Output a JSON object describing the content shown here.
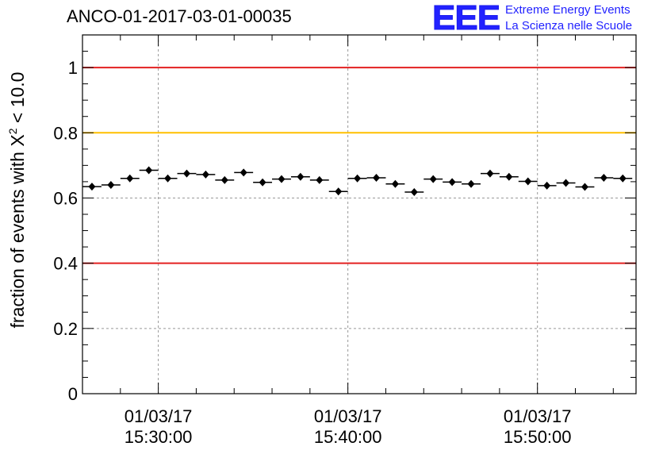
{
  "header": {
    "title": "ANCO-01-2017-03-01-00035"
  },
  "logo": {
    "mark": "EEE",
    "line1": "Extreme Energy Events",
    "line2": "La Scienza nelle Scuole",
    "color": "#2222ff"
  },
  "chart_data": {
    "type": "scatter",
    "title": "ANCO-01-2017-03-01-00035",
    "ylabel_prefix": "fraction of events with X",
    "ylabel_sup": "2",
    "ylabel_suffix": " < 10.0",
    "xlabel": "",
    "ylim": [
      0,
      1.1
    ],
    "yticks": [
      {
        "value": 0,
        "label": "0"
      },
      {
        "value": 0.2,
        "label": "0.2"
      },
      {
        "value": 0.4,
        "label": "0.4"
      },
      {
        "value": 0.6,
        "label": "0.6"
      },
      {
        "value": 0.8,
        "label": "0.8"
      },
      {
        "value": 1,
        "label": "1"
      }
    ],
    "xlim_minutes": [
      -4,
      25.2
    ],
    "xticks": [
      {
        "minutes": 0,
        "date": "01/03/17",
        "time": "15:30:00"
      },
      {
        "minutes": 10,
        "date": "01/03/17",
        "time": "15:40:00"
      },
      {
        "minutes": 20,
        "date": "01/03/17",
        "time": "15:50:00"
      }
    ],
    "grid": true,
    "bin_width_minutes": 1,
    "series": [
      {
        "x_minutes": [
          -3.5,
          -2.5,
          -1.5,
          -0.5,
          0.5,
          1.5,
          2.5,
          3.5,
          4.5,
          5.5,
          6.5,
          7.5,
          8.5,
          9.5,
          10.5,
          11.5,
          12.5,
          13.5,
          14.5,
          15.5,
          16.5,
          17.5,
          18.5,
          19.5,
          20.5,
          21.5,
          22.5,
          23.5,
          24.5
        ],
        "values": [
          0.635,
          0.64,
          0.66,
          0.685,
          0.66,
          0.675,
          0.672,
          0.655,
          0.678,
          0.648,
          0.658,
          0.665,
          0.655,
          0.62,
          0.66,
          0.662,
          0.643,
          0.618,
          0.658,
          0.649,
          0.643,
          0.675,
          0.665,
          0.651,
          0.638,
          0.646,
          0.634,
          0.662,
          0.66
        ],
        "errors": [
          0.008,
          0.008,
          0.008,
          0.008,
          0.008,
          0.008,
          0.008,
          0.008,
          0.008,
          0.008,
          0.008,
          0.008,
          0.008,
          0.008,
          0.008,
          0.008,
          0.008,
          0.008,
          0.008,
          0.008,
          0.008,
          0.008,
          0.008,
          0.008,
          0.008,
          0.008,
          0.008,
          0.008,
          0.008
        ]
      }
    ],
    "reference_lines": [
      {
        "value": 1.0,
        "color": "#e32020"
      },
      {
        "value": 0.8,
        "color": "#ffc000"
      },
      {
        "value": 0.4,
        "color": "#e32020"
      }
    ]
  }
}
